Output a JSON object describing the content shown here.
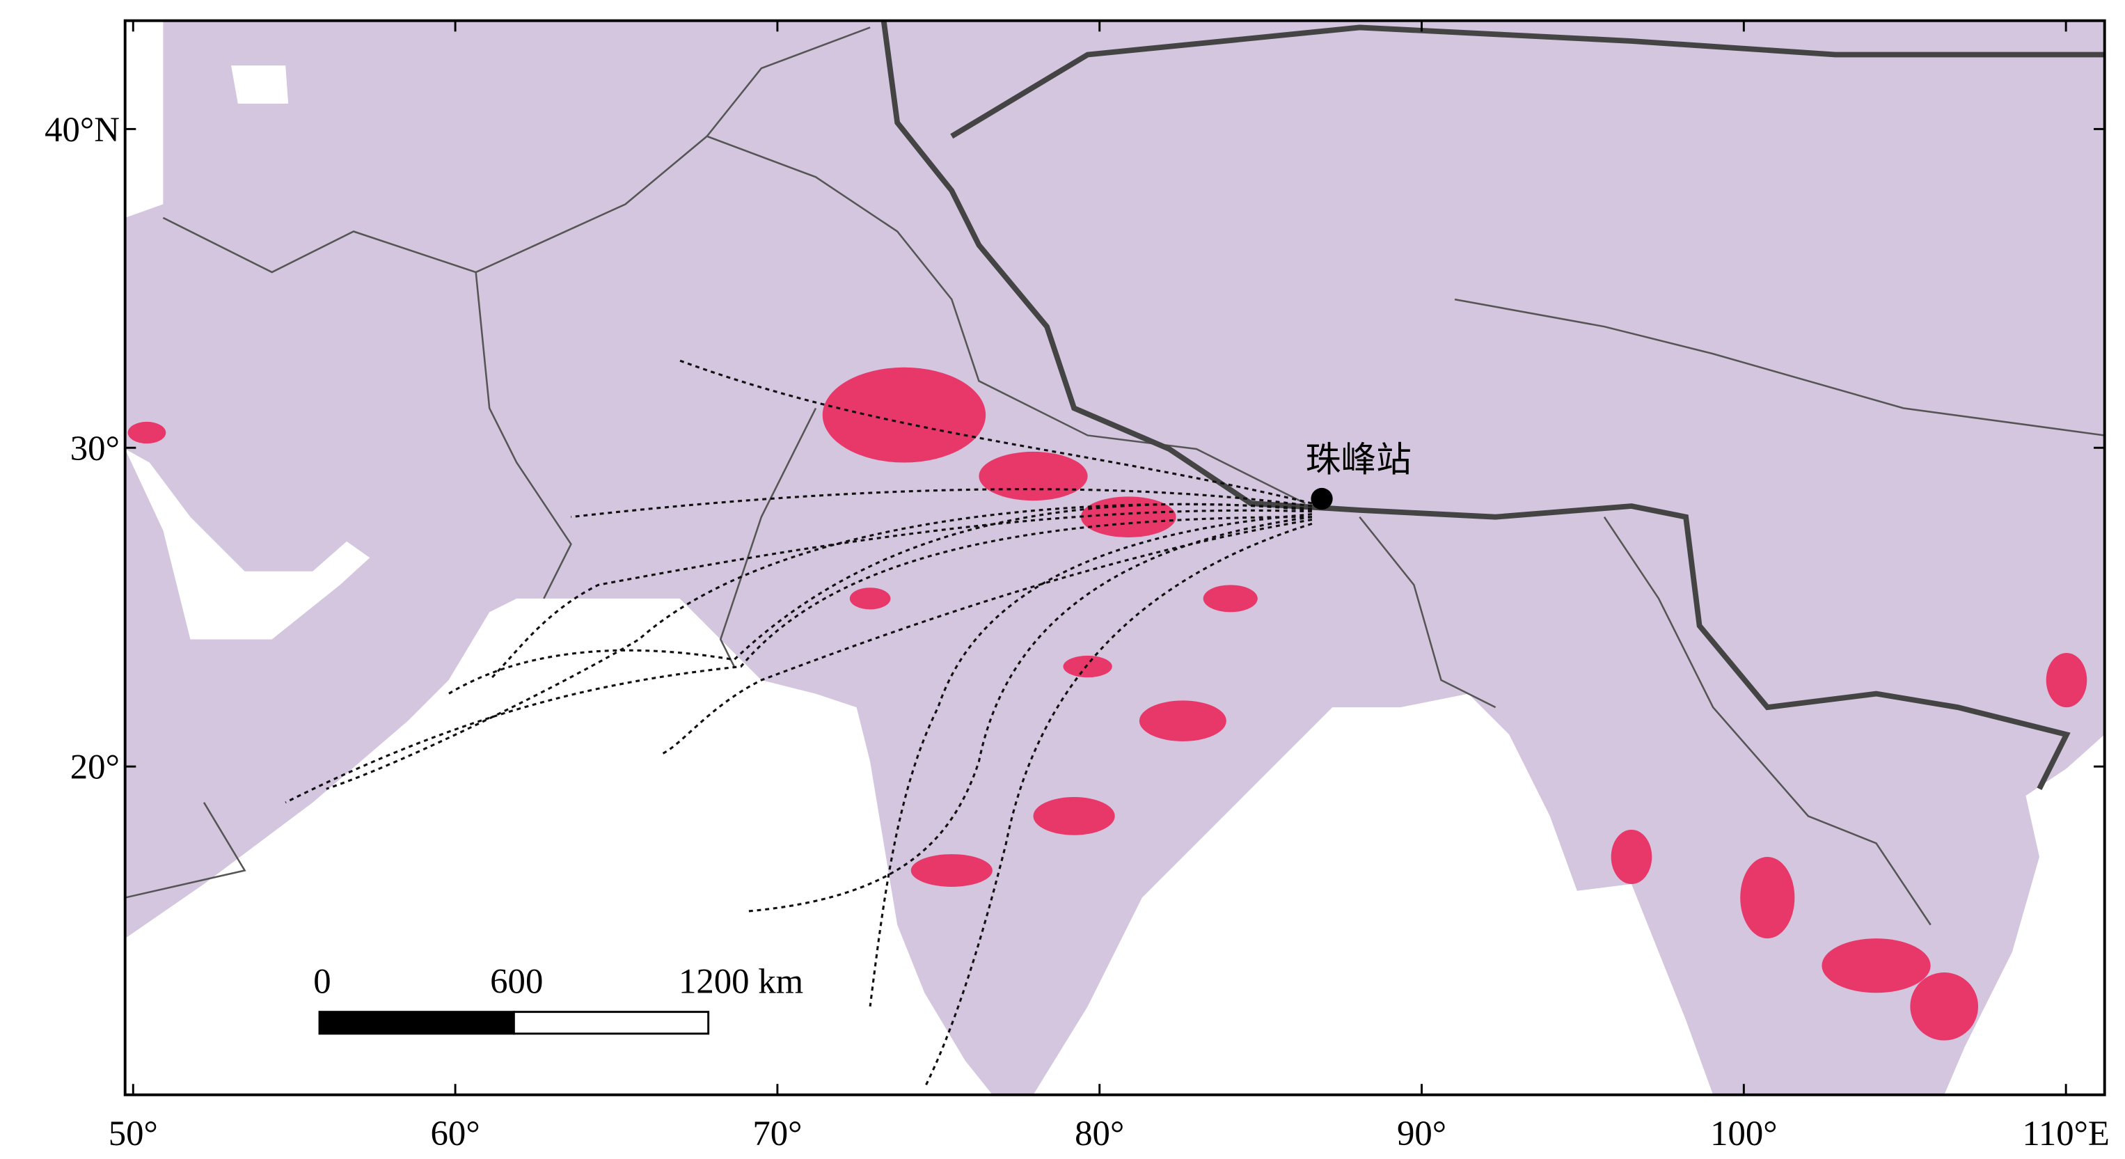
{
  "map": {
    "xlim": [
      49.75,
      111.2
    ],
    "ylim": [
      9.7,
      43.4
    ],
    "xticks": [
      {
        "value": 50,
        "label": "50°"
      },
      {
        "value": 60,
        "label": "60°"
      },
      {
        "value": 70,
        "label": "70°"
      },
      {
        "value": 80,
        "label": "80°"
      },
      {
        "value": 90,
        "label": "90°"
      },
      {
        "value": 100,
        "label": "100°"
      },
      {
        "value": 110,
        "label": "110°E"
      }
    ],
    "yticks": [
      {
        "value": 40,
        "label": "40°N"
      },
      {
        "value": 30,
        "label": "30°"
      },
      {
        "value": 20,
        "label": "20°"
      }
    ],
    "station": {
      "label": "珠峰站",
      "lon": 86.9,
      "lat": 28.4
    },
    "scale_bar": {
      "labels": [
        "0",
        "600",
        "1200 km"
      ]
    }
  }
}
